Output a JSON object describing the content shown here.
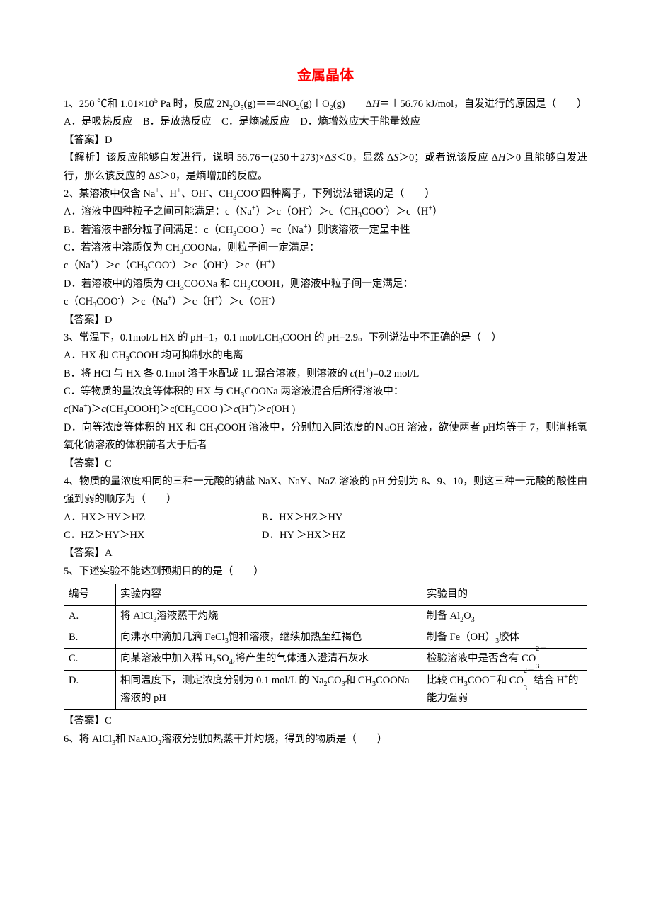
{
  "title": "金属晶体",
  "q1": {
    "stem_a": "1、250 ℃和 1.01×10",
    "exp5": "5",
    "stem_b": " Pa 时，反应 2N",
    "sub2a": "2",
    "stem_c": "O",
    "sub5": "5",
    "stem_d": "(g)＝＝4NO",
    "sub2b": "2",
    "stem_e": "(g)＋O",
    "sub2c": "2",
    "stem_f": "(g)　　Δ",
    "italic_H": "H",
    "stem_g": "＝＋56.76 kJ/mol，自发进行的原因是（　　）",
    "opts": "A．是吸热反应　B．是放热反应　C．是熵减反应　D．熵增效应大于能量效应",
    "ans": "【答案】D",
    "expl_a": "【解析】该反应能够自发进行，说明 56.76－(250＋273)×Δ",
    "italic_S1": "S",
    "expl_b": "＜0，显然 Δ",
    "italic_S2": "S",
    "expl_c": "＞0；或者说该反应 Δ",
    "italic_H2": "H",
    "expl_d": "＞0 且能够自发进行，那么该反应的 Δ",
    "italic_S3": "S",
    "expl_e": "＞0，是熵增加的反应。"
  },
  "q2": {
    "stem_a": "2、某溶液中仅含 Na",
    "sup_plus": "+",
    "stem_b": "、H",
    "stem_c": "、OH",
    "sup_minus": "-",
    "stem_d": "、CH",
    "sub3": "3",
    "stem_e": "COO",
    "stem_f": "四种离子，下列说法错误的是（　　）",
    "optA": "A．溶液中四种粒子之间可能满足：c（Na+）＞c（OH-）＞c（CH3COO-）＞c（H+）",
    "optB": "B．若溶液中部分粒子间满足：c（CH3COO-）=c（Na+）则该溶液一定呈中性",
    "optC1": "C．若溶液中溶质仅为 CH3COONa，则粒子间一定满足：",
    "optC2": "c（Na+）＞c（CH3COO-）＞c（OH-）＞c（H+）",
    "optD1": "D．若溶液中的溶质为 CH3COONa 和 CH3COOH，则溶液中粒子间一定满足：",
    "optD2": "c（CH3COO-）＞c（Na+）＞c（H+）＞c（OH-）",
    "ans": "【答案】D"
  },
  "q3": {
    "stem": "3、常温下，0.1mol/L HX 的 pH=1，0.1 mol/LCH3COOH 的 pH=2.9。下列说法中不正确的是（　）",
    "optA": "A．HX 和 CH3COOH 均可抑制水的电离",
    "optB_a": "B．将 HCl 与 HX 各 0.1mol 溶于水配成 1L 混合溶液，则溶液的 ",
    "optB_cH": "c",
    "optB_b": "(H",
    "optB_c": ")=0.2 mol/L",
    "optC1": "C．等物质的量浓度等体积的 HX 与 CH3COONa 两溶液混合后所得溶液中：",
    "optC2_a": "c",
    "optC2_b": "(Na",
    "optC2_c": ")＞",
    "optC2_d": "(CH",
    "optC2_e": "COOH)＞c(CH",
    "optC2_f": "COO",
    "optC2_g": ")＞",
    "optC2_h": "(H",
    "optC2_i": ")＞",
    "optC2_j": "(OH",
    "optC2_k": ")",
    "optD": "D．向等浓度等体积的 HX 和 CH3COOH 溶液中，分别加入同浓度的ＮaOH 溶液，欲使两者 pH均等于 7，则消耗氢氧化钠溶液的体积前者大于后者",
    "ans": "【答案】C"
  },
  "q4": {
    "stem": "4、物质的量浓度相同的三种一元酸的钠盐 NaX、NaY、NaZ 溶液的 pH 分别为 8、9、10，则这三种一元酸的酸性由强到弱的顺序为（　　）",
    "optA": "A．HX＞HY＞HZ",
    "optB": "B．HX＞HZ＞HY",
    "optC": "C．HZ＞HY＞HX",
    "optD": "D．HY ＞HX＞HZ",
    "ans": "【答案】A"
  },
  "q5": {
    "stem": "5、下述实验不能达到预期目的的是（　　）",
    "headers": {
      "num": "编号",
      "content": "实验内容",
      "purpose": "实验目的"
    },
    "rowA": {
      "num": "A.",
      "content_a": "将 AlCl",
      "content_b": "溶液蒸干灼烧",
      "purpose_a": "制备 Al",
      "purpose_b": "O"
    },
    "rowB": {
      "num": "B.",
      "content_a": "向沸水中滴加几滴 FeCl",
      "content_b": "饱和溶液，继续加热至红褐色",
      "purpose_a": "制备 Fe（OH）",
      "purpose_b": "胶体"
    },
    "rowC": {
      "num": "C.",
      "content_a": "向某溶液中加入稀 H",
      "content_b": "SO",
      "content_c": ",将产生的气体通入澄清石灰水",
      "purpose_a": "检验溶液中是否含有 CO"
    },
    "rowD": {
      "num": "D.",
      "content_a": "相同温度下，测定浓度分别为 0.1 mol/L 的 Na",
      "content_b": "CO",
      "content_c": "和 CH",
      "content_d": "COONa 溶液的 pH",
      "purpose_a": "比较 CH",
      "purpose_b": "COO",
      "purpose_c": "和 CO",
      "purpose_d": " 结合 H",
      "purpose_e": "的能力强弱"
    },
    "ans": "【答案】C"
  },
  "q6": {
    "stem_a": "6、将 AlCl",
    "stem_b": "和 NaAlO",
    "stem_c": "溶液分别加热蒸干并灼烧，得到的物质是（　　）"
  },
  "sub2": "2",
  "sub3": "3",
  "sub4": "4",
  "sup_plus": "+",
  "sup_minus": "-",
  "sup_2minus": "2－"
}
